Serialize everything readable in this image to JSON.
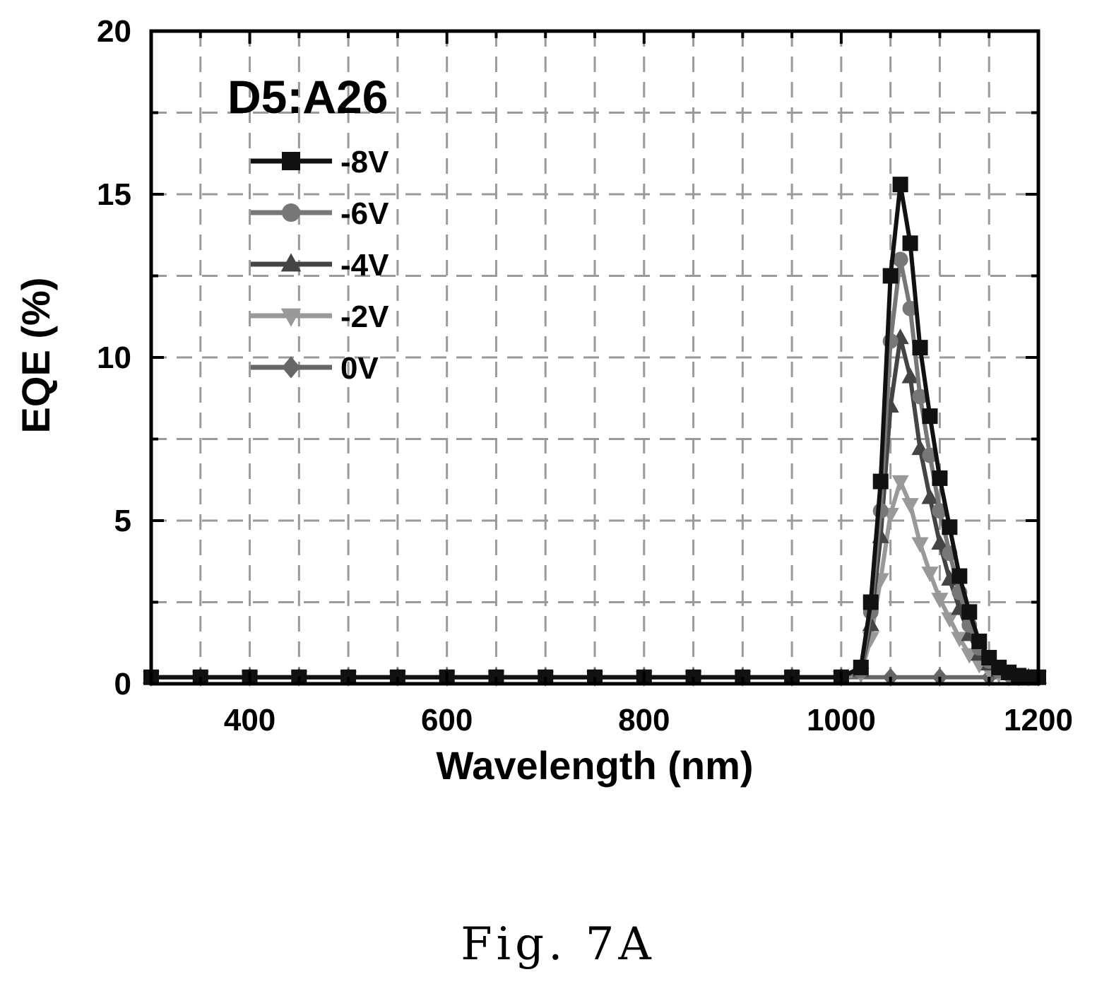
{
  "chart_data": {
    "type": "line",
    "title": "",
    "annotation": "D5:A26",
    "xlabel": "Wavelength (nm)",
    "ylabel": "EQE (%)",
    "xlim": [
      300,
      1200
    ],
    "ylim": [
      0,
      20
    ],
    "xticks": [
      400,
      600,
      800,
      1000,
      1200
    ],
    "yticks": [
      0,
      5,
      10,
      15,
      20
    ],
    "grid": true,
    "legend_position": "top-left",
    "series": [
      {
        "name": "-8V",
        "marker": "square",
        "color": "#111111",
        "x": [
          300,
          350,
          400,
          450,
          500,
          550,
          600,
          650,
          700,
          750,
          800,
          850,
          900,
          950,
          1000,
          1020,
          1030,
          1040,
          1050,
          1060,
          1070,
          1080,
          1090,
          1100,
          1110,
          1120,
          1130,
          1140,
          1150,
          1160,
          1170,
          1180,
          1190,
          1200
        ],
        "y": [
          0.2,
          0.2,
          0.2,
          0.2,
          0.2,
          0.2,
          0.2,
          0.2,
          0.2,
          0.2,
          0.2,
          0.2,
          0.2,
          0.2,
          0.2,
          0.5,
          2.5,
          6.2,
          12.5,
          15.3,
          13.5,
          10.3,
          8.2,
          6.3,
          4.8,
          3.3,
          2.2,
          1.3,
          0.8,
          0.5,
          0.35,
          0.25,
          0.2,
          0.2
        ]
      },
      {
        "name": "-6V",
        "marker": "circle",
        "color": "#777777",
        "x": [
          300,
          350,
          400,
          450,
          500,
          550,
          600,
          650,
          700,
          750,
          800,
          850,
          900,
          950,
          1000,
          1020,
          1030,
          1040,
          1050,
          1060,
          1070,
          1080,
          1090,
          1100,
          1110,
          1120,
          1130,
          1140,
          1150,
          1160,
          1170,
          1180,
          1190,
          1200
        ],
        "y": [
          0.2,
          0.2,
          0.2,
          0.2,
          0.2,
          0.2,
          0.2,
          0.2,
          0.2,
          0.2,
          0.2,
          0.2,
          0.2,
          0.2,
          0.2,
          0.4,
          2.2,
          5.3,
          10.5,
          13.0,
          11.5,
          8.8,
          7.0,
          5.3,
          4.0,
          2.8,
          1.8,
          1.1,
          0.7,
          0.4,
          0.3,
          0.2,
          0.2,
          0.2
        ]
      },
      {
        "name": "-4V",
        "marker": "triangle-up",
        "color": "#444444",
        "x": [
          300,
          350,
          400,
          450,
          500,
          550,
          600,
          650,
          700,
          750,
          800,
          850,
          900,
          950,
          1000,
          1020,
          1030,
          1040,
          1050,
          1060,
          1070,
          1080,
          1090,
          1100,
          1110,
          1120,
          1130,
          1140,
          1150,
          1160,
          1170,
          1180,
          1190,
          1200
        ],
        "y": [
          0.2,
          0.2,
          0.2,
          0.2,
          0.2,
          0.2,
          0.2,
          0.2,
          0.2,
          0.2,
          0.2,
          0.2,
          0.2,
          0.2,
          0.2,
          0.4,
          1.8,
          4.5,
          8.5,
          10.6,
          9.4,
          7.2,
          5.7,
          4.3,
          3.2,
          2.3,
          1.5,
          0.9,
          0.6,
          0.4,
          0.3,
          0.2,
          0.2,
          0.2
        ]
      },
      {
        "name": "-2V",
        "marker": "triangle-down",
        "color": "#999999",
        "x": [
          300,
          350,
          400,
          450,
          500,
          550,
          600,
          650,
          700,
          750,
          800,
          850,
          900,
          950,
          1000,
          1020,
          1030,
          1040,
          1050,
          1060,
          1070,
          1080,
          1090,
          1100,
          1110,
          1120,
          1130,
          1140,
          1150,
          1160,
          1170,
          1180,
          1190,
          1200
        ],
        "y": [
          0.2,
          0.2,
          0.2,
          0.2,
          0.2,
          0.2,
          0.2,
          0.2,
          0.2,
          0.2,
          0.2,
          0.2,
          0.2,
          0.2,
          0.2,
          0.3,
          1.4,
          3.2,
          5.2,
          6.2,
          5.5,
          4.3,
          3.4,
          2.6,
          2.0,
          1.4,
          0.9,
          0.6,
          0.4,
          0.3,
          0.2,
          0.2,
          0.2,
          0.2
        ]
      },
      {
        "name": "0V",
        "marker": "diamond",
        "color": "#666666",
        "x": [
          300,
          350,
          400,
          450,
          500,
          550,
          600,
          650,
          700,
          750,
          800,
          850,
          900,
          950,
          1000,
          1050,
          1100,
          1150,
          1200
        ],
        "y": [
          0.2,
          0.2,
          0.2,
          0.2,
          0.2,
          0.2,
          0.2,
          0.2,
          0.2,
          0.2,
          0.2,
          0.2,
          0.2,
          0.2,
          0.2,
          0.2,
          0.2,
          0.2,
          0.2
        ]
      }
    ]
  },
  "caption": "Fig. 7A"
}
